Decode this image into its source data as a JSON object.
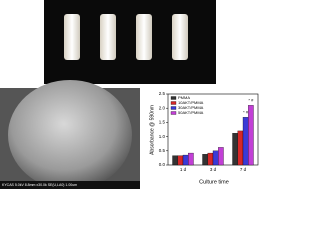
{
  "chart_data": {
    "type": "bar",
    "y_label": "Absorbance @ 590nm",
    "x_label": "Culture time",
    "categories": [
      "1 d",
      "3 d",
      "7 d"
    ],
    "series": [
      {
        "name": "PMMA",
        "color": "#333333",
        "values": [
          0.33,
          0.38,
          1.12
        ]
      },
      {
        "name": "10AKT/PMMA",
        "color": "#d62728",
        "values": [
          0.33,
          0.42,
          1.2
        ]
      },
      {
        "name": "30AKT/PMMA",
        "color": "#3a3ad6",
        "values": [
          0.35,
          0.5,
          1.68
        ]
      },
      {
        "name": "50AKT/PMMA",
        "color": "#c23fd6",
        "values": [
          0.42,
          0.62,
          2.1
        ]
      }
    ],
    "ylim": [
      0,
      2.5
    ],
    "yticks": [
      {
        "value": 0,
        "label": "0.0"
      },
      {
        "value": 0.5,
        "label": "0.5"
      },
      {
        "value": 1,
        "label": "1.0"
      },
      {
        "value": 1.5,
        "label": "1.5"
      },
      {
        "value": 2,
        "label": "2.0"
      },
      {
        "value": 2.5,
        "label": "2.5"
      }
    ],
    "annotations": [
      "* #",
      "* #"
    ],
    "legend": "upper-left"
  },
  "sem_caption": "KYCAS 5.0kV 8.8mm x30.0k SE(U,LA0) 1.00um"
}
